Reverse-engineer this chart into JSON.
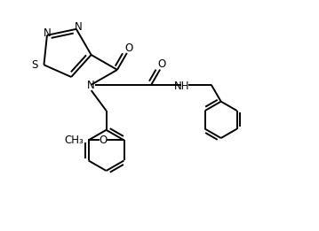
{
  "bg_color": "#ffffff",
  "line_color": "#000000",
  "line_width": 1.4,
  "font_size": 8.5,
  "figsize": [
    3.59,
    2.61
  ],
  "dpi": 100,
  "xlim": [
    0,
    9
  ],
  "ylim": [
    0,
    6.5
  ]
}
